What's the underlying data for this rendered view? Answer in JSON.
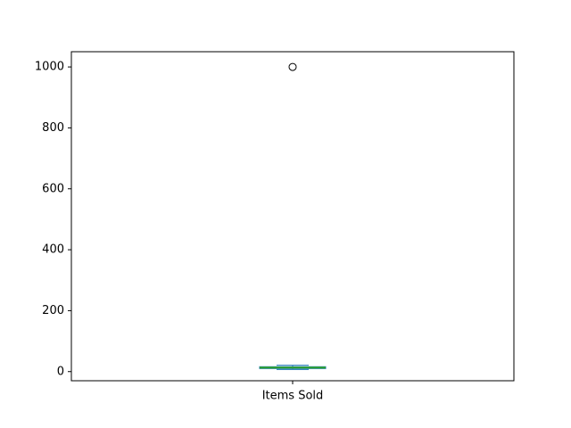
{
  "chart_data": {
    "type": "box",
    "title": "",
    "xlabel": "",
    "ylabel": "",
    "categories": [
      "Items Sold"
    ],
    "ylim": [
      -30,
      1050
    ],
    "yticks": [
      0,
      200,
      400,
      600,
      800,
      1000
    ],
    "boxes": [
      {
        "label": "Items Sold",
        "whisker_low": 7,
        "q1": 10,
        "median": 13,
        "q3": 16,
        "whisker_high": 21,
        "outliers": [
          1000
        ]
      }
    ],
    "grid": false,
    "legend": "none",
    "colors": {
      "box": "#1f77b4",
      "median": "#2ca02c",
      "axes": "#000000"
    }
  }
}
